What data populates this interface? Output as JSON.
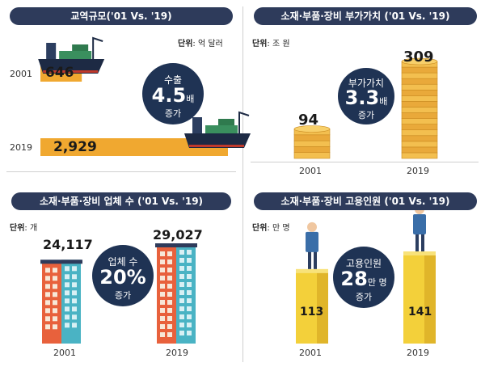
{
  "panels": {
    "trade": {
      "title": "교역규모('01 Vs. '19)",
      "unit_label": "단위",
      "unit_value": ": 억 달러",
      "callout": {
        "top": "수출",
        "big": "4.5",
        "suffix": "배",
        "bottom": "증가"
      }
    },
    "value_added": {
      "title": "소재·부품·장비 부가가치 ('01 Vs. '19)",
      "unit_label": "단위",
      "unit_value": ": 조 원",
      "callout": {
        "top": "부가가치",
        "big": "3.3",
        "suffix": "배",
        "bottom": "증가"
      }
    },
    "companies": {
      "title": "소재·부품·장비 업체 수 ('01 Vs. '19)",
      "unit_label": "단위",
      "unit_value": ": 개",
      "callout": {
        "top": "업체 수",
        "big": "20%",
        "suffix": "",
        "bottom": "증가"
      }
    },
    "employment": {
      "title": "소재·부품·장비 고용인원 ('01 Vs. '19)",
      "unit_label": "단위",
      "unit_value": ": 만 명",
      "callout": {
        "top": "고용인원",
        "big": "28",
        "suffix": "만 명",
        "bottom": "증가"
      }
    }
  },
  "colors": {
    "navy": "#1f3354",
    "orange": "#f0a830",
    "gold": "#f2c14e",
    "red": "#e8613c",
    "teal": "#4ab3c4",
    "yellow": "#f3d03a"
  },
  "chart_data": [
    {
      "type": "bar",
      "orientation": "horizontal",
      "categories": [
        "2001",
        "2019"
      ],
      "values": [
        646,
        2929
      ],
      "value_labels": [
        "646",
        "2,929"
      ]
    },
    {
      "type": "bar",
      "categories": [
        "2001",
        "2019"
      ],
      "values": [
        94,
        309
      ],
      "value_labels": [
        "94",
        "309"
      ]
    },
    {
      "type": "bar",
      "categories": [
        "2001",
        "2019"
      ],
      "values": [
        24117,
        29027
      ],
      "value_labels": [
        "24,117",
        "29,027"
      ]
    },
    {
      "type": "bar",
      "categories": [
        "2001",
        "2019"
      ],
      "values": [
        113,
        141
      ],
      "value_labels": [
        "113",
        "141"
      ]
    }
  ]
}
